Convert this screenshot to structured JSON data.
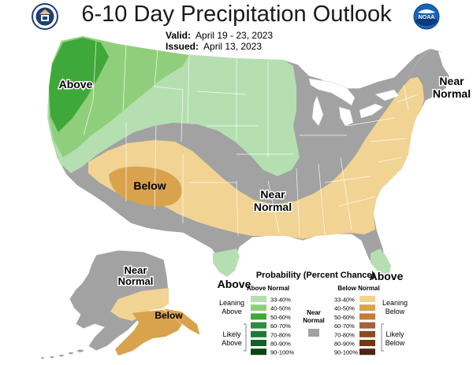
{
  "header": {
    "title": "6-10 Day Precipitation Outlook",
    "valid_label": "Valid:",
    "valid_dates": "April 19 - 23, 2023",
    "issued_label": "Issued:",
    "issued_date": "April 13, 2023"
  },
  "logos": {
    "left": "doc-seal-icon",
    "right": "noaa-logo-icon"
  },
  "colors": {
    "above_33_40": "#b5dfb1",
    "above_40_50": "#8fcf7b",
    "above_50_60": "#3fa83a",
    "above_60_70": "#2c8c3b",
    "above_70_80": "#1b7a33",
    "above_80_90": "#146028",
    "above_90_100": "#0b4516",
    "below_33_40": "#f1d393",
    "below_40_50": "#d9a24d",
    "below_50_60": "#c47b3c",
    "below_60_70": "#a6603a",
    "below_70_80": "#8a4a2a",
    "below_80_90": "#6e3a14",
    "below_90_100": "#4e2614",
    "near_normal": "#a2a2a2"
  },
  "map_labels": {
    "above_nw": "Above",
    "below_sw": "Below",
    "near_normal_center_1": "Near",
    "near_normal_center_2": "Normal",
    "near_normal_ne_1": "Near",
    "near_normal_ne_2": "Normal",
    "above_tx": "Above",
    "above_fl": "Above",
    "near_normal_ak_1": "Near",
    "near_normal_ak_2": "Normal",
    "below_ak": "Below"
  },
  "legend": {
    "title": "Probability (Percent Chance)",
    "above_header": "Above Normal",
    "below_header": "Below Normal",
    "near_normal_1": "Near",
    "near_normal_2": "Normal",
    "leaning_above_1": "Leaning",
    "leaning_above_2": "Above",
    "likely_above_1": "Likely",
    "likely_above_2": "Above",
    "leaning_below_1": "Leaning",
    "leaning_below_2": "Below",
    "likely_below_1": "Likely",
    "likely_below_2": "Below",
    "ranges": [
      "33-40%",
      "40-50%",
      "50-60%",
      "60-70%",
      "70-80%",
      "80-90%",
      "90-100%"
    ]
  }
}
